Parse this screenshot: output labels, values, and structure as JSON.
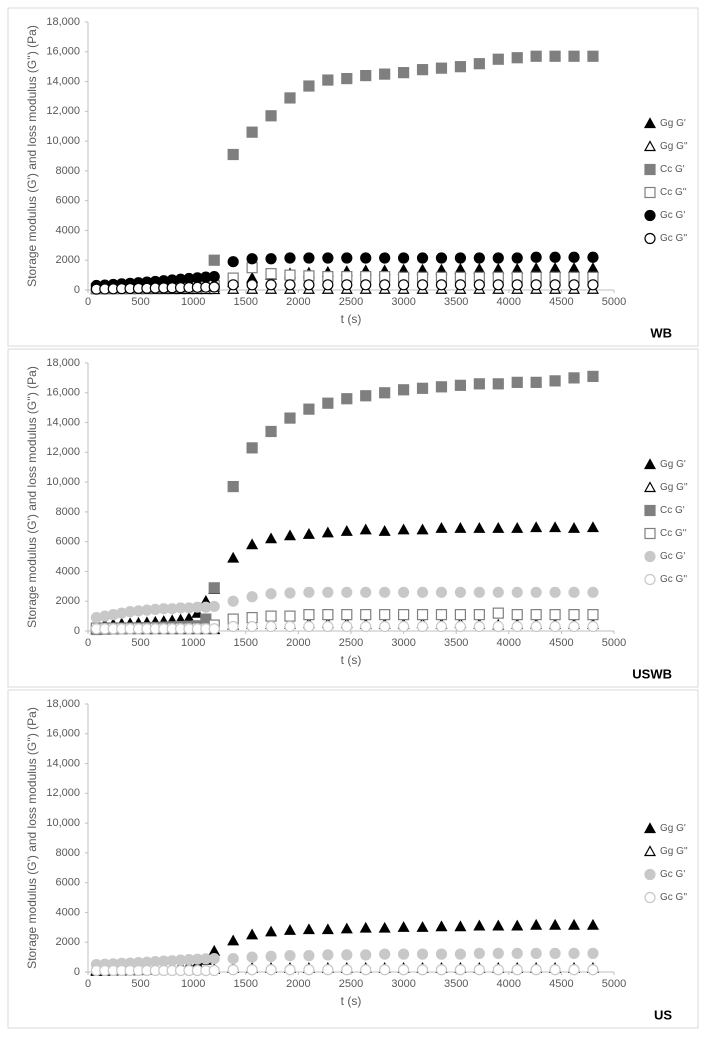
{
  "chart_data": [
    {
      "type": "scatter",
      "panel_label": "WB",
      "x_label": "t (s)",
      "y_label": "Storage modulus (G') and loss modulus (G'') (Pa)",
      "xlim": [
        0,
        5000
      ],
      "xticks": [
        0,
        500,
        1000,
        1500,
        2000,
        2500,
        3000,
        3500,
        4000,
        4500,
        5000
      ],
      "ylim": [
        0,
        18000
      ],
      "yticks": [
        0,
        2000,
        4000,
        6000,
        8000,
        {
          "value": 10000,
          "label": "10,000"
        },
        {
          "value": 12000,
          "label": "12,000"
        },
        {
          "value": 14000,
          "label": "14,000"
        },
        {
          "value": 16000,
          "label": "16,000"
        },
        {
          "value": 18000,
          "label": "18,000"
        }
      ],
      "x": [
        80,
        160,
        240,
        320,
        400,
        480,
        560,
        640,
        720,
        800,
        880,
        960,
        1040,
        1120,
        1200,
        1380,
        1560,
        1740,
        1920,
        2100,
        2280,
        2460,
        2640,
        2820,
        3000,
        3180,
        3360,
        3540,
        3720,
        3900,
        4080,
        4260,
        4440,
        4620,
        4800
      ],
      "series": [
        {
          "name": "Gg G'",
          "marker": "triangle",
          "filled": true,
          "color": "#000000",
          "values": [
            50,
            60,
            70,
            80,
            90,
            100,
            110,
            120,
            130,
            140,
            150,
            160,
            170,
            180,
            200,
            500,
            800,
            1000,
            1100,
            1150,
            1200,
            1250,
            1300,
            1300,
            1350,
            1350,
            1350,
            1400,
            1400,
            1400,
            1400,
            1450,
            1450,
            1450,
            1450
          ]
        },
        {
          "name": "Gg G''",
          "marker": "triangle",
          "filled": false,
          "color": "#000000",
          "values": [
            30,
            30,
            30,
            30,
            30,
            30,
            30,
            30,
            30,
            30,
            30,
            30,
            30,
            30,
            30,
            50,
            50,
            50,
            50,
            50,
            50,
            50,
            50,
            50,
            50,
            50,
            50,
            50,
            50,
            50,
            50,
            50,
            50,
            50,
            50
          ]
        },
        {
          "name": "Cc G'",
          "marker": "square",
          "filled": true,
          "color": "#7f7f7f",
          "values": [
            100,
            110,
            120,
            130,
            140,
            150,
            160,
            170,
            180,
            190,
            200,
            210,
            220,
            250,
            2000,
            9100,
            10600,
            11700,
            12900,
            13700,
            14100,
            14200,
            14400,
            14500,
            14600,
            14800,
            14900,
            15000,
            15200,
            15500,
            15600,
            15700,
            15700,
            15700,
            15700
          ]
        },
        {
          "name": "Cc G''",
          "marker": "square",
          "filled": false,
          "color": "#7f7f7f",
          "values": [
            80,
            90,
            100,
            110,
            120,
            130,
            140,
            150,
            160,
            170,
            180,
            190,
            200,
            220,
            300,
            800,
            1500,
            1100,
            1000,
            950,
            900,
            900,
            900,
            900,
            850,
            850,
            850,
            850,
            850,
            850,
            850,
            850,
            850,
            850,
            850
          ]
        },
        {
          "name": "Gc G'",
          "marker": "circle",
          "filled": true,
          "color": "#000000",
          "values": [
            300,
            330,
            370,
            410,
            450,
            490,
            530,
            570,
            620,
            670,
            720,
            770,
            820,
            870,
            900,
            1900,
            2100,
            2100,
            2150,
            2150,
            2150,
            2150,
            2150,
            2150,
            2150,
            2150,
            2150,
            2150,
            2150,
            2150,
            2150,
            2200,
            2200,
            2200,
            2200
          ]
        },
        {
          "name": "Gc G''",
          "marker": "circle",
          "filled": false,
          "color": "#000000",
          "values": [
            60,
            70,
            80,
            90,
            100,
            110,
            120,
            130,
            140,
            150,
            160,
            170,
            180,
            190,
            200,
            350,
            350,
            350,
            350,
            350,
            350,
            350,
            350,
            350,
            350,
            350,
            350,
            350,
            350,
            350,
            350,
            350,
            350,
            350,
            350
          ]
        }
      ]
    },
    {
      "type": "scatter",
      "panel_label": "USWB",
      "x_label": "t (s)",
      "y_label": "Storage modulus (G') and loss modulus (G'') (Pa)",
      "xlim": [
        0,
        5000
      ],
      "xticks": [
        0,
        500,
        1000,
        1500,
        2000,
        2500,
        3000,
        3500,
        4000,
        4500,
        5000
      ],
      "ylim": [
        0,
        18000
      ],
      "yticks": [
        0,
        2000,
        4000,
        6000,
        8000,
        {
          "value": 10000,
          "label": "10,000"
        },
        {
          "value": 12000,
          "label": "12,000"
        },
        {
          "value": 14000,
          "label": "14,000"
        },
        {
          "value": 16000,
          "label": "16,000"
        },
        {
          "value": 18000,
          "label": "18,000"
        }
      ],
      "x": [
        80,
        160,
        240,
        320,
        400,
        480,
        560,
        640,
        720,
        800,
        880,
        960,
        1040,
        1120,
        1200,
        1380,
        1560,
        1740,
        1920,
        2100,
        2280,
        2460,
        2640,
        2820,
        3000,
        3180,
        3360,
        3540,
        3720,
        3900,
        4080,
        4260,
        4440,
        4620,
        4800
      ],
      "series": [
        {
          "name": "Gg G'",
          "marker": "triangle",
          "filled": true,
          "color": "#000000",
          "values": [
            400,
            420,
            450,
            480,
            500,
            530,
            560,
            600,
            650,
            700,
            750,
            850,
            1200,
            2000,
            2800,
            4900,
            5800,
            6200,
            6400,
            6500,
            6600,
            6700,
            6800,
            6700,
            6800,
            6800,
            6900,
            6900,
            6900,
            6900,
            6900,
            6950,
            6950,
            6900,
            6950
          ]
        },
        {
          "name": "Gg G''",
          "marker": "triangle",
          "filled": false,
          "color": "#000000",
          "values": [
            100,
            100,
            100,
            100,
            100,
            100,
            100,
            100,
            100,
            100,
            100,
            100,
            100,
            100,
            100,
            400,
            450,
            450,
            450,
            500,
            500,
            500,
            450,
            450,
            450,
            500,
            450,
            500,
            450,
            400,
            450,
            450,
            450,
            450,
            450
          ]
        },
        {
          "name": "Cc G'",
          "marker": "square",
          "filled": true,
          "color": "#7f7f7f",
          "values": [
            100,
            120,
            140,
            160,
            180,
            200,
            220,
            240,
            260,
            280,
            300,
            320,
            350,
            800,
            2900,
            9700,
            12300,
            13400,
            14300,
            14900,
            15300,
            15600,
            15800,
            16000,
            16200,
            16300,
            16400,
            16500,
            16600,
            16600,
            16700,
            16700,
            16800,
            17000,
            17100
          ]
        },
        {
          "name": "Cc G''",
          "marker": "square",
          "filled": false,
          "color": "#7f7f7f",
          "values": [
            200,
            200,
            200,
            200,
            200,
            200,
            200,
            200,
            200,
            200,
            200,
            200,
            200,
            200,
            400,
            800,
            900,
            1000,
            1000,
            1100,
            1100,
            1100,
            1100,
            1100,
            1100,
            1100,
            1100,
            1100,
            1100,
            1200,
            1100,
            1100,
            1100,
            1100,
            1100
          ]
        },
        {
          "name": "Gc G'",
          "marker": "circle",
          "filled": true,
          "color": "#c8c8c8",
          "values": [
            900,
            1000,
            1100,
            1200,
            1300,
            1350,
            1400,
            1450,
            1500,
            1500,
            1550,
            1550,
            1600,
            1600,
            1650,
            2000,
            2300,
            2500,
            2550,
            2600,
            2600,
            2600,
            2600,
            2600,
            2600,
            2600,
            2600,
            2600,
            2600,
            2600,
            2600,
            2600,
            2600,
            2600,
            2600
          ]
        },
        {
          "name": "Gc G''",
          "marker": "circle",
          "filled": false,
          "color": "#c8c8c8",
          "values": [
            150,
            150,
            150,
            150,
            150,
            150,
            150,
            150,
            150,
            150,
            150,
            150,
            150,
            150,
            150,
            300,
            300,
            300,
            300,
            300,
            300,
            300,
            300,
            300,
            300,
            300,
            300,
            300,
            300,
            300,
            300,
            300,
            300,
            300,
            300
          ]
        }
      ]
    },
    {
      "type": "scatter",
      "panel_label": "US",
      "x_label": "t (s)",
      "y_label": "Storage modulus (G') and loss modulus (G'') (Pa)",
      "xlim": [
        0,
        5000
      ],
      "xticks": [
        0,
        500,
        1000,
        1500,
        2000,
        2500,
        3000,
        3500,
        4000,
        4500,
        5000
      ],
      "ylim": [
        0,
        18000
      ],
      "yticks": [
        0,
        2000,
        4000,
        6000,
        8000,
        {
          "value": 10000,
          "label": "10,000"
        },
        {
          "value": 12000,
          "label": "12,000"
        },
        {
          "value": 14000,
          "label": "14,000"
        },
        {
          "value": 16000,
          "label": "16,000"
        },
        {
          "value": 18000,
          "label": "18,000"
        }
      ],
      "x": [
        80,
        160,
        240,
        320,
        400,
        480,
        560,
        640,
        720,
        800,
        880,
        960,
        1040,
        1120,
        1200,
        1380,
        1560,
        1740,
        1920,
        2100,
        2280,
        2460,
        2640,
        2820,
        3000,
        3180,
        3360,
        3540,
        3720,
        3900,
        4080,
        4260,
        4440,
        4620,
        4800
      ],
      "series": [
        {
          "name": "Gg G'",
          "marker": "triangle",
          "filled": true,
          "color": "#000000",
          "values": [
            100,
            120,
            140,
            160,
            180,
            200,
            230,
            260,
            300,
            350,
            400,
            450,
            550,
            800,
            1400,
            2100,
            2500,
            2700,
            2800,
            2850,
            2850,
            2900,
            2950,
            2950,
            3000,
            3000,
            3050,
            3050,
            3100,
            3100,
            3100,
            3150,
            3150,
            3150,
            3150
          ]
        },
        {
          "name": "Gg G''",
          "marker": "triangle",
          "filled": false,
          "color": "#000000",
          "values": [
            50,
            60,
            70,
            80,
            90,
            100,
            120,
            140,
            160,
            180,
            200,
            220,
            240,
            200,
            180,
            250,
            250,
            250,
            250,
            250,
            250,
            250,
            250,
            250,
            250,
            250,
            250,
            250,
            250,
            250,
            250,
            250,
            250,
            250,
            250
          ]
        },
        {
          "name": "Gc G'",
          "marker": "circle",
          "filled": true,
          "color": "#c8c8c8",
          "values": [
            500,
            520,
            550,
            580,
            600,
            630,
            660,
            700,
            730,
            760,
            800,
            830,
            860,
            880,
            900,
            900,
            1000,
            1050,
            1100,
            1100,
            1150,
            1150,
            1150,
            1200,
            1200,
            1200,
            1200,
            1200,
            1250,
            1250,
            1250,
            1250,
            1250,
            1250,
            1250
          ]
        },
        {
          "name": "Gc G''",
          "marker": "circle",
          "filled": false,
          "color": "#c8c8c8",
          "values": [
            100,
            100,
            100,
            100,
            100,
            100,
            100,
            100,
            100,
            100,
            100,
            100,
            100,
            100,
            100,
            150,
            150,
            150,
            150,
            150,
            150,
            150,
            150,
            150,
            150,
            150,
            150,
            150,
            150,
            150,
            150,
            150,
            150,
            150,
            150
          ]
        }
      ]
    }
  ]
}
